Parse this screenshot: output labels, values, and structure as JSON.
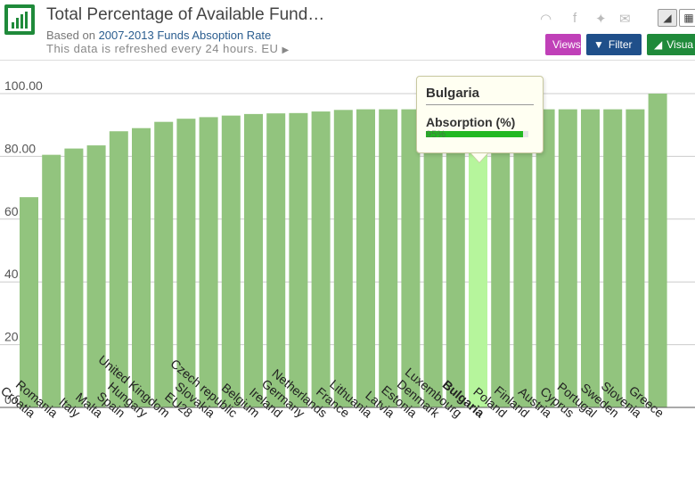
{
  "header": {
    "title": "Total Percentage of Available Fund…",
    "subtitle_prefix": "Based on",
    "subtitle_link": "2007-2013 Funds Absoption Rate",
    "refresh_text": "This data is refreshed every 24 hours. EU",
    "logo_icon": "bar-chart-icon",
    "buttons": {
      "views": "Views",
      "filter": "Filter",
      "visual": "Visua"
    }
  },
  "colors": {
    "bar": "#92c47e",
    "bar_highlight": "#b6f59c",
    "axis": "#555555",
    "grid": "#cccccc"
  },
  "tooltip": {
    "country": "Bulgaria",
    "label": "Absorption (%)",
    "value_text": "95%",
    "value": 95
  },
  "chart_data": {
    "type": "bar",
    "categories": [
      "Croatia",
      "Romania",
      "Italy",
      "Malta",
      "Spain",
      "Hungary",
      "United Kingdom",
      "EU28",
      "Slovakia",
      "Czech republic",
      "Belgium",
      "Ireland",
      "Germany",
      "Netherlands",
      "France",
      "Lithuania",
      "Latvia",
      "Estonia",
      "Denmark",
      "Luxembourg",
      "Bulgaria",
      "Poland",
      "Finland",
      "Austria",
      "Cyprus",
      "Portugal",
      "Sweden",
      "Slovenia",
      "Greece"
    ],
    "values": [
      67,
      80.5,
      82.5,
      83.5,
      88,
      89,
      91,
      92,
      92.5,
      93,
      93.5,
      93.7,
      93.8,
      94.3,
      94.8,
      95,
      95,
      95,
      95,
      95,
      95,
      95,
      95,
      95,
      95,
      95,
      95,
      95,
      100
    ],
    "highlight": "Bulgaria",
    "ylim": [
      0,
      100
    ],
    "yticks": [
      "0.00",
      "20.00",
      "40.00",
      "60.00",
      "80.00",
      "100.00"
    ],
    "grid": true
  }
}
